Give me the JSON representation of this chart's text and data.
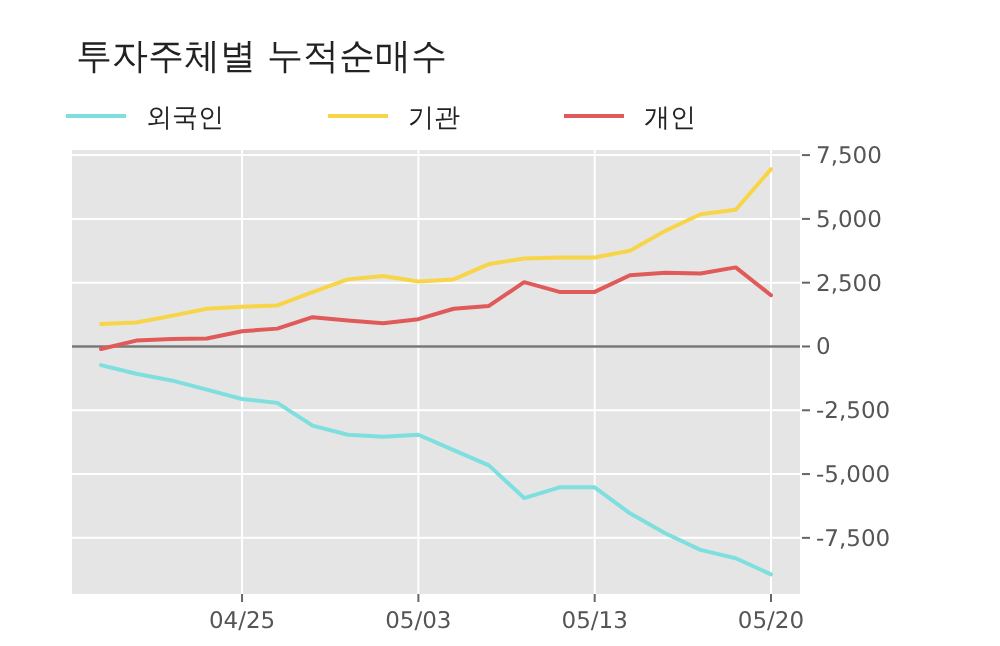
{
  "chart_data": {
    "type": "line",
    "title": "투자주체별 누적순매수",
    "categories": [
      null,
      null,
      null,
      null,
      "04/25",
      null,
      null,
      null,
      null,
      "05/03",
      null,
      null,
      null,
      null,
      "05/13",
      null,
      null,
      null,
      null,
      "05/20"
    ],
    "series": [
      {
        "name": "외국인",
        "color": "#7fdfdf",
        "values": [
          -730,
          -1070,
          -1330,
          -1690,
          -2060,
          -2210,
          -3100,
          -3460,
          -3540,
          -3460,
          -4060,
          -4660,
          -5940,
          -5520,
          -5520,
          -6540,
          -7320,
          -7970,
          -8300,
          -8930
        ]
      },
      {
        "name": "기관",
        "color": "#f8d548",
        "values": [
          880,
          940,
          1200,
          1480,
          1560,
          1610,
          2130,
          2630,
          2760,
          2550,
          2630,
          3230,
          3450,
          3490,
          3490,
          3750,
          4530,
          5180,
          5360,
          6950
        ]
      },
      {
        "name": "개인",
        "color": "#e05a5a",
        "values": [
          -100,
          230,
          290,
          310,
          600,
          700,
          1150,
          1020,
          910,
          1070,
          1480,
          1590,
          2520,
          2140,
          2140,
          2790,
          2890,
          2860,
          3100,
          2010
        ]
      }
    ],
    "ylim": [
      -9700,
      7700
    ],
    "yticks": [
      {
        "value": 7500,
        "label": "7,500"
      },
      {
        "value": 5000,
        "label": "5,000"
      },
      {
        "value": 2500,
        "label": "2,500"
      },
      0,
      {
        "value": -2500,
        "label": "-2,500"
      },
      {
        "value": -5000,
        "label": "-5,000"
      },
      {
        "value": -7500,
        "label": "-7,500"
      }
    ],
    "ref_lines": [
      {
        "axis": "y",
        "value": 0,
        "color": "#777777"
      }
    ],
    "grid": true,
    "legend": "top"
  }
}
